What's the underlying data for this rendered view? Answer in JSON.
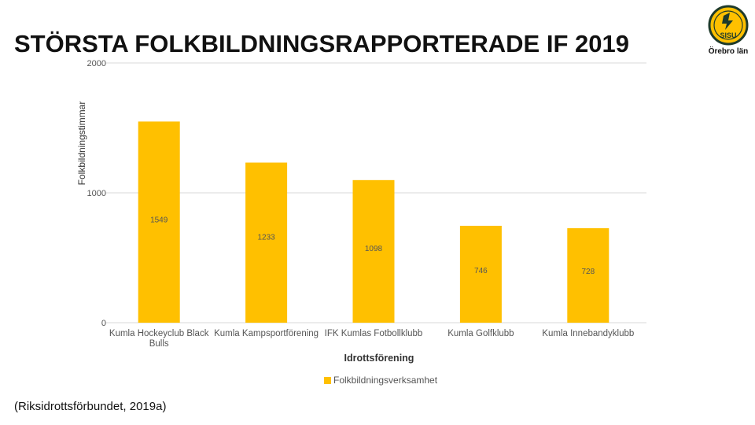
{
  "header": {
    "title": "STÖRSTA FOLKBILDNINGSRAPPORTERADE IF 2019",
    "logo_text": "Örebro län",
    "logo_badge": "SISU"
  },
  "footer": {
    "source": "(Riksidrottsförbundet, 2019a)"
  },
  "colors": {
    "bar": "#FFC000",
    "grid": "#d9d9d9"
  },
  "chart_data": {
    "type": "bar",
    "categories": [
      "Kumla Hockeyclub Black Bulls",
      "Kumla Kampsportförening",
      "IFK Kumlas Fotbollklubb",
      "Kumla Golfklubb",
      "Kumla Innebandyklubb"
    ],
    "series": [
      {
        "name": "Folkbildningsverksamhet",
        "values": [
          1549,
          1233,
          1098,
          746,
          728
        ]
      }
    ],
    "xlabel": "Idrottsförening",
    "ylabel": "Folkbildningstimmar",
    "ylim": [
      0,
      2000
    ],
    "yticks": [
      0,
      1000,
      2000
    ],
    "grid": true,
    "legend": "bottom"
  }
}
